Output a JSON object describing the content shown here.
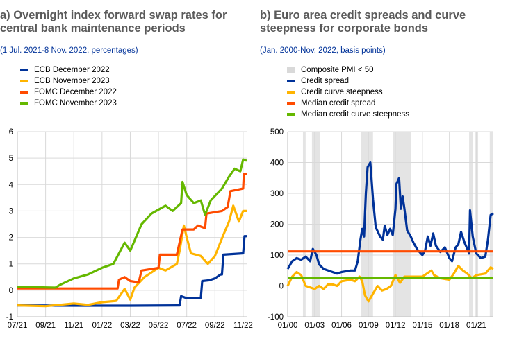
{
  "chart_data": [
    {
      "type": "line",
      "title": "a) Overnight index forward swap rates for central bank maintenance periods",
      "subtitle": "(1 Jul. 2021-8 Nov. 2022, percentages)",
      "x_unit": "months since Jul. 2021",
      "xticks": [
        "07/21",
        "09/21",
        "11/21",
        "01/22",
        "03/22",
        "05/22",
        "07/22",
        "09/22",
        "11/22"
      ],
      "yticks": [
        "-1",
        "0",
        "1",
        "2",
        "3",
        "4",
        "5",
        "6"
      ],
      "ylim": [
        -1,
        6
      ],
      "xlim": [
        0,
        16.3
      ],
      "grid": true,
      "legend": "top-left",
      "series": [
        {
          "name": "ECB December 2022",
          "color": "#003299",
          "x": [
            0,
            4,
            8,
            11.5,
            11.6,
            12,
            13,
            13.1,
            13.6,
            14,
            14.4,
            14.5,
            14.6,
            16,
            16.1,
            16.25
          ],
          "y": [
            -0.57,
            -0.58,
            -0.58,
            -0.57,
            -0.22,
            -0.3,
            -0.28,
            0.35,
            0.38,
            0.45,
            0.6,
            0.6,
            1.35,
            1.4,
            2.05,
            2.05
          ]
        },
        {
          "name": "ECB November 2023",
          "color": "#ffb400",
          "x": [
            0,
            2,
            3,
            4,
            5,
            6,
            7,
            7.6,
            8,
            8.3,
            9,
            10,
            10.5,
            11.3,
            11.5,
            11.8,
            12,
            12.3,
            13,
            13.5,
            14,
            14.6,
            15,
            15.3,
            15.7,
            16,
            16.25
          ],
          "y": [
            -0.57,
            -0.6,
            -0.55,
            -0.5,
            -0.55,
            -0.45,
            -0.4,
            0.05,
            -0.35,
            0.1,
            0.5,
            0.85,
            0.75,
            1.0,
            1.5,
            2.45,
            2.0,
            1.4,
            1.3,
            1.0,
            1.3,
            2.1,
            2.6,
            3.2,
            2.6,
            3.0,
            3.0
          ]
        },
        {
          "name": "FOMC December 2022",
          "color": "#ff4b00",
          "x": [
            0,
            7.1,
            7.2,
            7.6,
            8,
            8.6,
            8.8,
            10,
            10.1,
            11.3,
            11.7,
            12.5,
            12.8,
            13.3,
            13.4,
            14.5,
            14.9,
            15.1,
            16,
            16.05,
            16.25
          ],
          "y": [
            0.07,
            0.07,
            0.4,
            0.5,
            0.35,
            0.3,
            0.75,
            0.85,
            1.35,
            1.35,
            2.3,
            2.3,
            2.45,
            2.35,
            2.9,
            3.0,
            3.15,
            3.75,
            3.85,
            4.4,
            4.4
          ]
        },
        {
          "name": "FOMC November 2023",
          "color": "#65b800",
          "x": [
            0,
            2.7,
            3,
            4,
            5,
            6,
            6.8,
            7.6,
            8,
            8.8,
            9.5,
            10.5,
            11,
            11.6,
            11.7,
            12,
            12.5,
            13,
            13.3,
            13.7,
            14.5,
            15,
            15.4,
            15.8,
            16,
            16.25
          ],
          "y": [
            0.13,
            0.1,
            0.2,
            0.45,
            0.6,
            0.85,
            1.0,
            1.8,
            1.5,
            2.5,
            2.9,
            3.2,
            3.0,
            3.3,
            4.1,
            3.6,
            3.3,
            3.4,
            2.85,
            3.4,
            3.85,
            4.3,
            4.6,
            4.5,
            4.95,
            4.9
          ]
        }
      ]
    },
    {
      "type": "line",
      "title": "b) Euro area credit spreads and curve steepness for corporate bonds",
      "subtitle": "(Jan. 2000-Nov. 2022, basis points)",
      "x_unit": "years since Jan. 2000",
      "xticks": [
        "01/00",
        "01/03",
        "01/06",
        "01/09",
        "01/12",
        "01/15",
        "01/18",
        "01/21"
      ],
      "yticks": [
        "-100",
        "0",
        "100",
        "200",
        "300",
        "400",
        "500"
      ],
      "ylim": [
        -100,
        500
      ],
      "xlim": [
        0,
        22.9
      ],
      "grid": true,
      "legend": "top-left",
      "shaded": {
        "name": "Composite PMI < 50",
        "color": "#d9d9d9",
        "periods": [
          [
            1.7,
            2.0
          ],
          [
            2.7,
            3.6
          ],
          [
            8.2,
            9.5
          ],
          [
            11.7,
            13.7
          ],
          [
            20.2,
            20.6
          ],
          [
            20.9,
            21.2
          ],
          [
            22.5,
            22.9
          ]
        ]
      },
      "series": [
        {
          "name": "Credit spread",
          "color": "#003299",
          "x": [
            0,
            0.5,
            1,
            1.5,
            2,
            2.5,
            2.8,
            3.2,
            3.5,
            4,
            5,
            5.5,
            6,
            7,
            7.5,
            7.8,
            8.1,
            8.3,
            8.5,
            8.7,
            8.9,
            9.2,
            9.5,
            9.8,
            10.3,
            10.6,
            10.8,
            11.1,
            11.4,
            11.7,
            12,
            12.1,
            12.4,
            12.6,
            12.8,
            13,
            13.3,
            13.7,
            14,
            14.5,
            15,
            15.3,
            15.6,
            15.9,
            16.2,
            16.5,
            17,
            17.5,
            18,
            18.3,
            18.7,
            19,
            19.3,
            19.7,
            20,
            20.2,
            20.3,
            20.6,
            21,
            21.5,
            22,
            22.3,
            22.6,
            22.9
          ],
          "y": [
            55,
            80,
            90,
            85,
            95,
            80,
            120,
            100,
            70,
            55,
            45,
            40,
            45,
            50,
            50,
            80,
            150,
            185,
            160,
            300,
            385,
            400,
            280,
            190,
            160,
            150,
            195,
            165,
            185,
            165,
            250,
            330,
            350,
            250,
            290,
            250,
            180,
            160,
            140,
            115,
            100,
            115,
            160,
            130,
            170,
            130,
            110,
            125,
            90,
            80,
            125,
            135,
            175,
            140,
            120,
            105,
            245,
            160,
            105,
            90,
            95,
            150,
            230,
            235
          ]
        },
        {
          "name": "Credit curve steepness",
          "color": "#ffb400",
          "x": [
            0,
            0.5,
            1,
            1.5,
            2,
            3,
            3.5,
            4,
            4.5,
            5,
            5.5,
            6,
            7,
            7.5,
            8,
            8.3,
            8.6,
            9,
            9.4,
            10,
            10.5,
            11,
            11.5,
            12,
            12.5,
            13,
            14,
            15,
            16,
            16.3,
            17,
            18,
            18.5,
            19,
            19.5,
            20,
            20.5,
            21,
            22,
            22.6,
            22.9
          ],
          "y": [
            0,
            30,
            45,
            35,
            0,
            -10,
            0,
            -10,
            5,
            5,
            0,
            15,
            20,
            15,
            30,
            15,
            -30,
            -50,
            -30,
            0,
            -15,
            -10,
            0,
            35,
            10,
            30,
            30,
            30,
            50,
            35,
            25,
            20,
            40,
            65,
            50,
            40,
            25,
            35,
            40,
            60,
            55
          ]
        },
        {
          "name": "Median credit spread",
          "color": "#ff4b00",
          "x": [
            0,
            22.9
          ],
          "y": [
            112,
            112
          ]
        },
        {
          "name": "Median credit curve steepness",
          "color": "#65b800",
          "x": [
            0,
            22.9
          ],
          "y": [
            25,
            25
          ]
        }
      ]
    }
  ]
}
